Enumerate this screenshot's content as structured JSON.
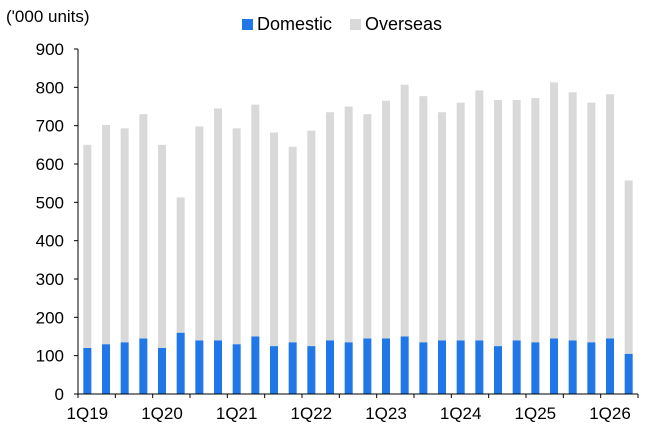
{
  "chart_data": {
    "type": "bar",
    "stacked": true,
    "unit_label": "('000 units)",
    "legend_position": "top",
    "grid": false,
    "ylim": [
      0,
      900
    ],
    "yticks": [
      0,
      100,
      200,
      300,
      400,
      500,
      600,
      700,
      800,
      900
    ],
    "categories": [
      "1Q19",
      "2Q19",
      "3Q19",
      "4Q19",
      "1Q20",
      "2Q20",
      "3Q20",
      "4Q20",
      "1Q21",
      "2Q21",
      "3Q21",
      "4Q21",
      "1Q22",
      "2Q22",
      "3Q22",
      "4Q22",
      "1Q23",
      "2Q23",
      "3Q23",
      "4Q23",
      "1Q24",
      "2Q24",
      "3Q24",
      "4Q24",
      "1Q25",
      "2Q25",
      "3Q25",
      "4Q25",
      "1Q26",
      "2Q26"
    ],
    "xtick_labels": [
      "1Q19",
      "1Q20",
      "1Q21",
      "1Q22",
      "1Q23",
      "1Q24",
      "1Q25",
      "1Q26"
    ],
    "series": [
      {
        "name": "Domestic",
        "color": "#1f77e8",
        "values": [
          120,
          130,
          135,
          145,
          120,
          160,
          140,
          140,
          130,
          150,
          125,
          135,
          125,
          140,
          135,
          145,
          145,
          150,
          135,
          140,
          140,
          140,
          125,
          140,
          135,
          145,
          140,
          135,
          145,
          105
        ]
      },
      {
        "name": "Overseas",
        "color": "#d9d9d9",
        "values": [
          530,
          572,
          558,
          585,
          530,
          353,
          558,
          605,
          563,
          605,
          557,
          510,
          562,
          595,
          615,
          585,
          620,
          657,
          642,
          595,
          620,
          652,
          642,
          627,
          637,
          668,
          647,
          625,
          637,
          452
        ]
      }
    ]
  }
}
